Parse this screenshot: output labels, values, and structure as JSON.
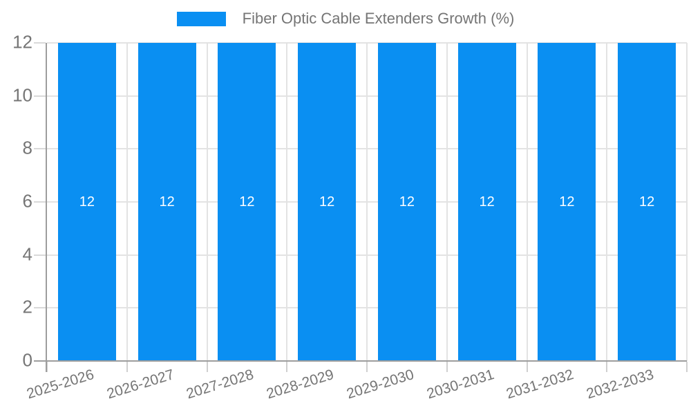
{
  "chart_data": {
    "type": "bar",
    "title": "Fiber Optic Cable Extenders Growth (%)",
    "legend": {
      "label": "Fiber Optic Cable Extenders Growth (%)",
      "position": "top"
    },
    "categories": [
      "2025-2026",
      "2026-2027",
      "2027-2028",
      "2028-2029",
      "2029-2030",
      "2030-2031",
      "2031-2032",
      "2032-2033"
    ],
    "values": [
      12,
      12,
      12,
      12,
      12,
      12,
      12,
      12
    ],
    "bar_value_labels": [
      "12",
      "12",
      "12",
      "12",
      "12",
      "12",
      "12",
      "12"
    ],
    "xlabel": "",
    "ylabel": "",
    "ylim": [
      0,
      12
    ],
    "yticks": [
      0,
      2,
      4,
      6,
      8,
      10,
      12
    ],
    "grid": true,
    "x_tick_rotation_deg": -17,
    "colors": {
      "bar": "#0a8ff2",
      "bar_label_text": "#ffffff",
      "tick_text": "#757575",
      "legend_text": "#757575",
      "gridline": "#e3e3e3",
      "axis_line": "#9d9d9d",
      "background": "#ffffff"
    }
  }
}
